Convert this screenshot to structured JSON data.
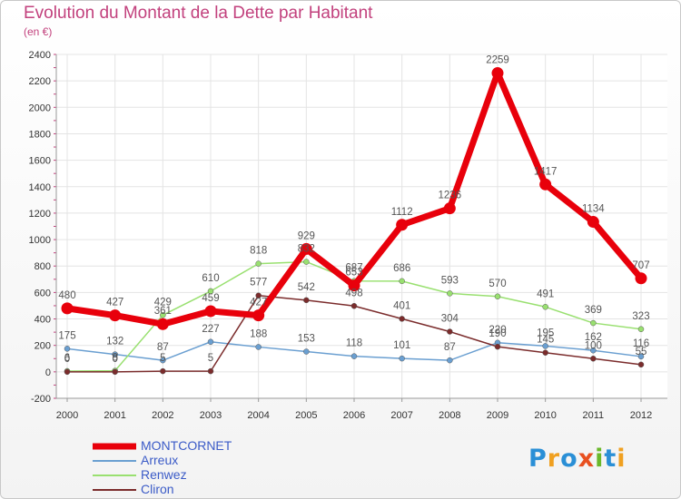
{
  "title": "Evolution du Montant de la Dette par Habitant",
  "subtitle": "(en €)",
  "logo": "Proxiti",
  "chart_data": {
    "type": "line",
    "title": "Evolution du Montant de la Dette par Habitant",
    "subtitle": "(en €)",
    "x": [
      "2000",
      "2001",
      "2002",
      "2003",
      "2004",
      "2005",
      "2006",
      "2007",
      "2008",
      "2009",
      "2010",
      "2011",
      "2012"
    ],
    "ylim": [
      -200,
      2400
    ],
    "yticks": [
      -200,
      0,
      200,
      400,
      600,
      800,
      1000,
      1200,
      1400,
      1600,
      1800,
      2000,
      2200,
      2400
    ],
    "grid": true,
    "legend_position": "bottom-left",
    "series": [
      {
        "name": "MONTCORNET",
        "color": "#e8000b",
        "values": [
          480,
          427,
          361,
          459,
          427,
          929,
          653,
          1112,
          1236,
          2259,
          1417,
          1134,
          707
        ]
      },
      {
        "name": "Arreux",
        "color": "#6a9fd1",
        "values": [
          175,
          132,
          87,
          227,
          188,
          153,
          118,
          101,
          87,
          220,
          195,
          162,
          116
        ]
      },
      {
        "name": "Renwez",
        "color": "#99e070",
        "values": [
          6,
          8,
          429,
          610,
          818,
          832,
          687,
          686,
          593,
          570,
          491,
          369,
          323
        ]
      },
      {
        "name": "Cliron",
        "color": "#7b2c2c",
        "values": [
          0,
          0,
          5,
          5,
          577,
          542,
          498,
          401,
          304,
          190,
          145,
          100,
          55
        ]
      }
    ]
  }
}
